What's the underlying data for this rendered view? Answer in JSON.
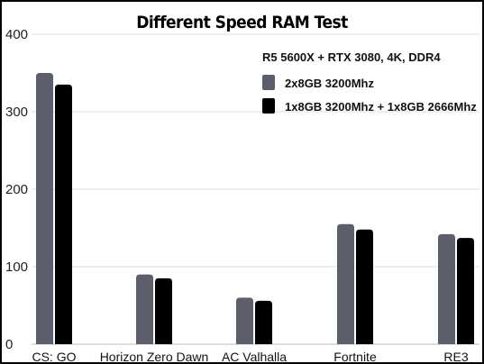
{
  "chart_data": {
    "type": "bar",
    "title": "Different Speed RAM Test",
    "subtitle": "R5 5600X + RTX 3080, 4K, DDR4",
    "xlabel": "",
    "ylabel": "",
    "ylim": [
      0,
      400
    ],
    "yticks": [
      0,
      100,
      200,
      300,
      400
    ],
    "grid": true,
    "legend_position": "top-right",
    "categories": [
      "CS: GO",
      "Horizon Zero Dawn",
      "AC Valhalla",
      "Fortnite",
      "RE3"
    ],
    "series": [
      {
        "name": "2x8GB 3200Mhz",
        "color": "#5c5f6b",
        "values": [
          350,
          90,
          60,
          155,
          142
        ]
      },
      {
        "name": "1x8GB 3200Mhz + 1x8GB 2666Mhz",
        "color": "#000000",
        "values": [
          335,
          85,
          56,
          148,
          137
        ]
      }
    ]
  }
}
